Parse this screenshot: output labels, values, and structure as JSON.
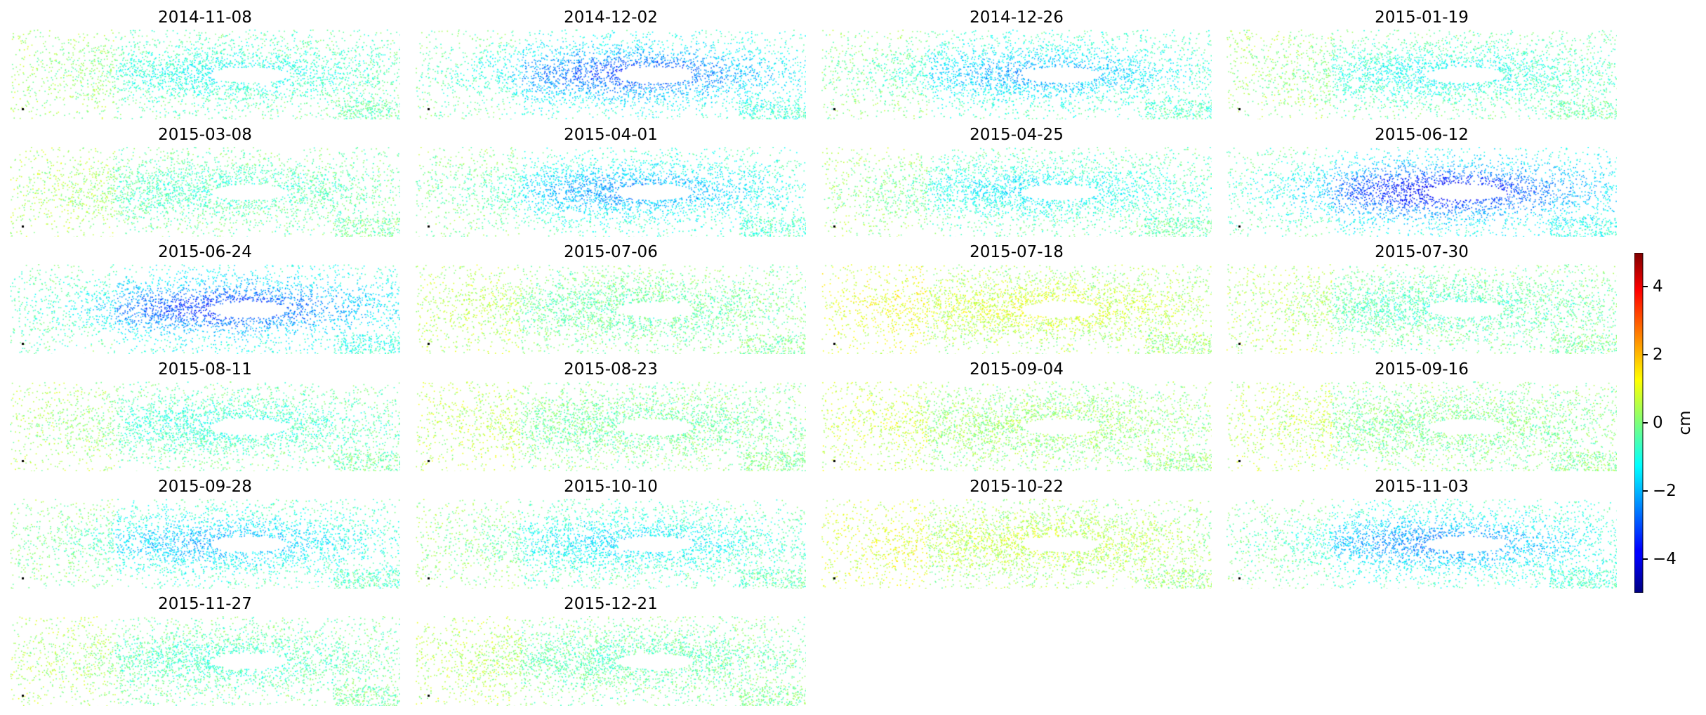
{
  "chart_data": {
    "type": "heatmap",
    "description_units": "cm",
    "panels": [
      {
        "title": "2014-11-08",
        "mean_cm": -1.0
      },
      {
        "title": "2014-12-02",
        "mean_cm": -2.6
      },
      {
        "title": "2014-12-26",
        "mean_cm": -1.8
      },
      {
        "title": "2015-01-19",
        "mean_cm": -1.0
      },
      {
        "title": "2015-03-08",
        "mean_cm": -0.6
      },
      {
        "title": "2015-04-01",
        "mean_cm": -1.9
      },
      {
        "title": "2015-04-25",
        "mean_cm": -1.2
      },
      {
        "title": "2015-06-12",
        "mean_cm": -3.2
      },
      {
        "title": "2015-06-24",
        "mean_cm": -2.8
      },
      {
        "title": "2015-07-06",
        "mean_cm": -0.3
      },
      {
        "title": "2015-07-18",
        "mean_cm": 0.8
      },
      {
        "title": "2015-07-30",
        "mean_cm": -0.5
      },
      {
        "title": "2015-08-11",
        "mean_cm": -0.8
      },
      {
        "title": "2015-08-23",
        "mean_cm": -0.2
      },
      {
        "title": "2015-09-04",
        "mean_cm": 0.2
      },
      {
        "title": "2015-09-16",
        "mean_cm": -0.1
      },
      {
        "title": "2015-09-28",
        "mean_cm": -1.7
      },
      {
        "title": "2015-10-10",
        "mean_cm": -1.3
      },
      {
        "title": "2015-10-22",
        "mean_cm": 0.6
      },
      {
        "title": "2015-11-03",
        "mean_cm": -2.1
      },
      {
        "title": "2015-11-27",
        "mean_cm": -0.6
      },
      {
        "title": "2015-12-21",
        "mean_cm": -0.4
      }
    ],
    "colorbar": {
      "label": "cm",
      "min": -5,
      "max": 5,
      "ticks": [
        4,
        2,
        0,
        -2,
        -4
      ],
      "tick_labels": [
        "4",
        "2",
        "0",
        "−2",
        "−4"
      ],
      "colormap": "jet"
    }
  }
}
